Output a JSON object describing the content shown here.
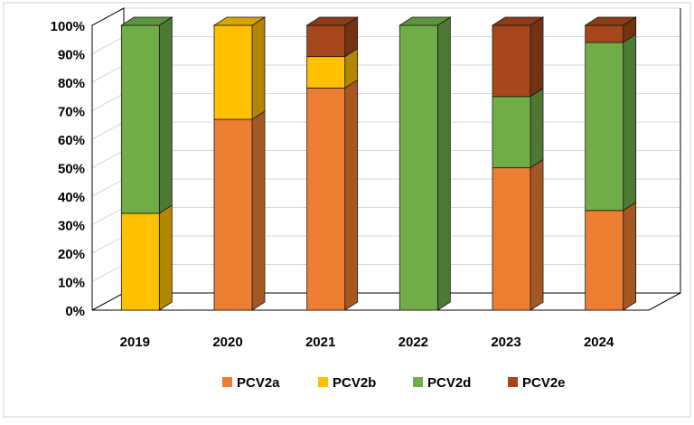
{
  "chart_data": {
    "type": "bar",
    "stacked": "percent",
    "categories": [
      "2019",
      "2020",
      "2021",
      "2022",
      "2023",
      "2024"
    ],
    "series": [
      {
        "name": "PCV2a",
        "values": [
          0,
          67,
          78,
          0,
          50,
          35
        ],
        "color": "#ED7D31"
      },
      {
        "name": "PCV2b",
        "values": [
          34,
          33,
          11,
          0,
          0,
          0
        ],
        "color": "#FFC000"
      },
      {
        "name": "PCV2d",
        "values": [
          66,
          0,
          0,
          100,
          25,
          59
        ],
        "color": "#70AD47"
      },
      {
        "name": "PCV2e",
        "values": [
          0,
          0,
          11,
          0,
          25,
          6
        ],
        "color": "#A5471A"
      }
    ],
    "yticks": [
      "0%",
      "10%",
      "20%",
      "30%",
      "40%",
      "50%",
      "60%",
      "70%",
      "80%",
      "90%",
      "100%"
    ],
    "ylim": [
      0,
      100
    ],
    "grid": true,
    "legend": "bottom",
    "title": "",
    "xlabel": "",
    "ylabel": ""
  }
}
